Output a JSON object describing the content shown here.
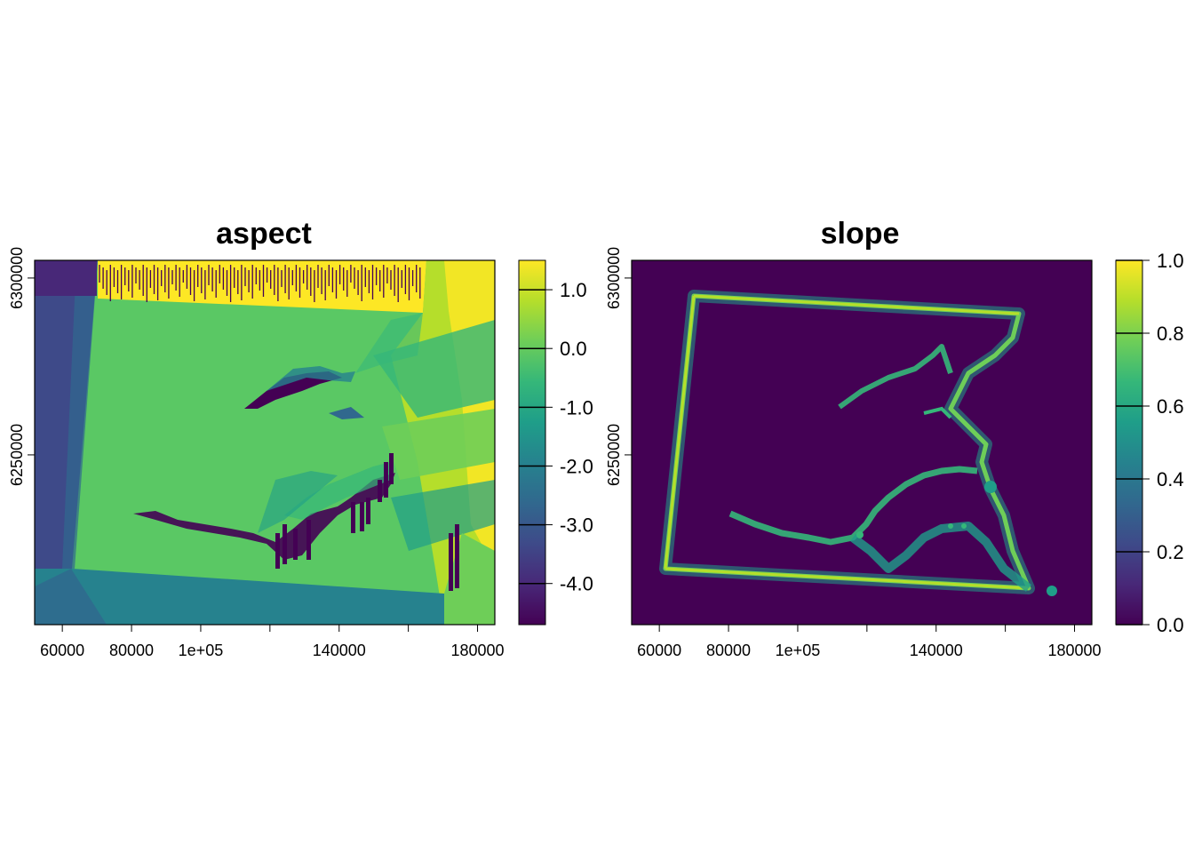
{
  "colors": {
    "viridis": [
      "#440154",
      "#482878",
      "#3E4A89",
      "#31688E",
      "#26828E",
      "#1F9E89",
      "#35B779",
      "#6ECE58",
      "#B5DE2B",
      "#FDE725"
    ],
    "aspect_flat": "#5AC864",
    "slope_flat": "#440154"
  },
  "chart_data": [
    {
      "type": "heatmap",
      "title": "aspect",
      "x_ticks": [
        "60000",
        "80000",
        "1e+05",
        "140000",
        "180000"
      ],
      "x_tick_values": [
        60000,
        80000,
        100000,
        140000,
        180000
      ],
      "x_minor_ticks": [
        120000,
        160000
      ],
      "y_ticks": [
        "6250000",
        "6300000"
      ],
      "y_tick_values": [
        6250000,
        6300000
      ],
      "xlim": [
        52000,
        185000
      ],
      "ylim": [
        6202000,
        6305000
      ],
      "legend": {
        "min": -4.7,
        "max": 1.5,
        "labels": [
          "1.0",
          "0.0",
          "-1.0",
          "-2.0",
          "-3.0",
          "-4.0"
        ],
        "values": [
          1.0,
          0.0,
          -1.0,
          -2.0,
          -3.0,
          -4.0
        ]
      }
    },
    {
      "type": "heatmap",
      "title": "slope",
      "x_ticks": [
        "60000",
        "80000",
        "1e+05",
        "140000",
        "180000"
      ],
      "x_tick_values": [
        60000,
        80000,
        100000,
        140000,
        180000
      ],
      "x_minor_ticks": [
        120000,
        160000
      ],
      "y_ticks": [
        "6250000",
        "6300000"
      ],
      "y_tick_values": [
        6250000,
        6300000
      ],
      "xlim": [
        52000,
        185000
      ],
      "ylim": [
        6202000,
        6305000
      ],
      "legend": {
        "min": 0.0,
        "max": 1.0,
        "labels": [
          "1.0",
          "0.8",
          "0.6",
          "0.4",
          "0.2",
          "0.0"
        ],
        "values": [
          1.0,
          0.8,
          0.6,
          0.4,
          0.2,
          0.0
        ]
      }
    }
  ]
}
